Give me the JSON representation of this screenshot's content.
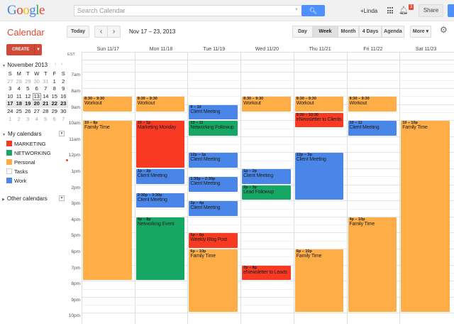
{
  "topbar": {
    "logo": "Google",
    "search_placeholder": "Search Calendar",
    "search_icon": "magnifier-icon",
    "user": "+Linda",
    "notifications": "3",
    "share": "Share"
  },
  "toolbar": {
    "app_title": "Calendar",
    "today": "Today",
    "prev": "‹",
    "next": "›",
    "date_range": "Nov 17 – 23, 2013",
    "views": [
      "Day",
      "Week",
      "Month",
      "4 Days",
      "Agenda"
    ],
    "selected_view": "Week",
    "more": "More ▾",
    "gear": "⚙"
  },
  "sidebar": {
    "create": "CREATE",
    "create_arrow": "▼",
    "minical": {
      "title": "November 2013",
      "weekdays": [
        "S",
        "M",
        "T",
        "W",
        "T",
        "F",
        "S"
      ],
      "weeks": [
        [
          "27",
          "28",
          "29",
          "30",
          "31",
          "1",
          "2"
        ],
        [
          "3",
          "4",
          "5",
          "6",
          "7",
          "8",
          "9"
        ],
        [
          "10",
          "11",
          "12",
          "13",
          "14",
          "15",
          "16"
        ],
        [
          "17",
          "18",
          "19",
          "20",
          "21",
          "22",
          "23"
        ],
        [
          "24",
          "25",
          "26",
          "27",
          "28",
          "29",
          "30"
        ],
        [
          "1",
          "2",
          "3",
          "4",
          "5",
          "6",
          "7"
        ]
      ],
      "today": "13"
    },
    "my_calendars": "My calendars",
    "other_calendars": "Other calendars",
    "calendars": [
      {
        "name": "MARKETING",
        "color": "#f83a22"
      },
      {
        "name": "NETWORKING",
        "color": "#16a765"
      },
      {
        "name": "Personal",
        "color": "#ffad46"
      },
      {
        "name": "Tasks",
        "color": "#ffffff"
      },
      {
        "name": "Work",
        "color": "#4986e7"
      }
    ]
  },
  "week": {
    "timezone": "EST",
    "days": [
      "Sun 11/17",
      "Mon 11/18",
      "Tue 11/19",
      "Wed 11/20",
      "Thu 11/21",
      "Fri 11/22",
      "Sat 11/23"
    ],
    "hours": [
      "7am",
      "8am",
      "9am",
      "10am",
      "11am",
      "12pm",
      "1pm",
      "2pm",
      "3pm",
      "4pm",
      "5pm",
      "6pm",
      "7pm",
      "8pm",
      "9pm",
      "10pm"
    ]
  },
  "colors": {
    "orange": "#ffad46",
    "red": "#f83a22",
    "green": "#16a765",
    "blue": "#4986e7"
  },
  "events": [
    {
      "day": 0,
      "start": 8.5,
      "end": 9.5,
      "time": "8:30 – 9:30",
      "title": "Workout",
      "color": "orange"
    },
    {
      "day": 0,
      "start": 10,
      "end": 20,
      "time": "10 – 8p",
      "title": "Family Time",
      "color": "orange"
    },
    {
      "day": 1,
      "start": 8.5,
      "end": 9.5,
      "time": "8:30 – 9:30",
      "title": "Workout",
      "color": "orange"
    },
    {
      "day": 1,
      "start": 10,
      "end": 13,
      "time": "10 – 1p",
      "title": "Marketing Monday",
      "color": "red"
    },
    {
      "day": 1,
      "start": 13,
      "end": 14,
      "time": "1p – 2p",
      "title": "Client Meeting",
      "color": "blue"
    },
    {
      "day": 1,
      "start": 14.5,
      "end": 15.5,
      "time": "2:30p – 3:30p",
      "title": "Client Meeting",
      "color": "blue"
    },
    {
      "day": 1,
      "start": 16,
      "end": 20,
      "time": "4p – 8p",
      "title": "Networking Event",
      "color": "green"
    },
    {
      "day": 2,
      "start": 9,
      "end": 10,
      "time": "9 – 10",
      "title": "Client Meeting",
      "color": "blue"
    },
    {
      "day": 2,
      "start": 10,
      "end": 11,
      "time": "10 – 11",
      "title": "Networking Followup",
      "color": "green"
    },
    {
      "day": 2,
      "start": 12,
      "end": 13,
      "time": "12p – 1p",
      "title": "Client Meeting",
      "color": "blue"
    },
    {
      "day": 2,
      "start": 13.5,
      "end": 14.5,
      "time": "1:30p – 2:30p",
      "title": "Client Meeting",
      "color": "blue"
    },
    {
      "day": 2,
      "start": 15,
      "end": 16,
      "time": "3p – 4p",
      "title": "Client Meeting",
      "color": "blue"
    },
    {
      "day": 2,
      "start": 17,
      "end": 18,
      "time": "5p – 6p",
      "title": "Weekly Blog Post",
      "color": "red"
    },
    {
      "day": 2,
      "start": 18,
      "end": 22,
      "time": "6p – 10p",
      "title": "Family Time",
      "color": "orange"
    },
    {
      "day": 3,
      "start": 8.5,
      "end": 9.5,
      "time": "8:30 – 9:30",
      "title": "Workout",
      "color": "orange"
    },
    {
      "day": 3,
      "start": 13,
      "end": 14,
      "time": "1p – 2p",
      "title": "Client Meeting",
      "color": "blue"
    },
    {
      "day": 3,
      "start": 14,
      "end": 15,
      "time": "2p – 3p",
      "title": "Lead Followup",
      "color": "green"
    },
    {
      "day": 3,
      "start": 19,
      "end": 20,
      "time": "7p – 8p",
      "title": "eNewsletter to Leads",
      "color": "red"
    },
    {
      "day": 4,
      "start": 8.5,
      "end": 9.5,
      "time": "8:30 – 9:30",
      "title": "Workout",
      "color": "orange"
    },
    {
      "day": 4,
      "start": 9.5,
      "end": 10.5,
      "time": "9:30 – 10:30",
      "title": "eNewsletter to Clients",
      "color": "red"
    },
    {
      "day": 4,
      "start": 12,
      "end": 15,
      "time": "12p – 3p",
      "title": "Client Meeting",
      "color": "blue"
    },
    {
      "day": 4,
      "start": 18,
      "end": 22,
      "time": "6p – 10p",
      "title": "Family Time",
      "color": "orange"
    },
    {
      "day": 5,
      "start": 8.5,
      "end": 9.5,
      "time": "8:30 – 9:30",
      "title": "Workout",
      "color": "orange"
    },
    {
      "day": 5,
      "start": 10,
      "end": 11,
      "time": "10 – 11",
      "title": "Client Meeting",
      "color": "blue"
    },
    {
      "day": 5,
      "start": 16,
      "end": 22,
      "time": "4p – 10p",
      "title": "Family Time",
      "color": "orange"
    },
    {
      "day": 6,
      "start": 10,
      "end": 22,
      "time": "10 – 10p",
      "title": "Family Time",
      "color": "orange"
    }
  ]
}
